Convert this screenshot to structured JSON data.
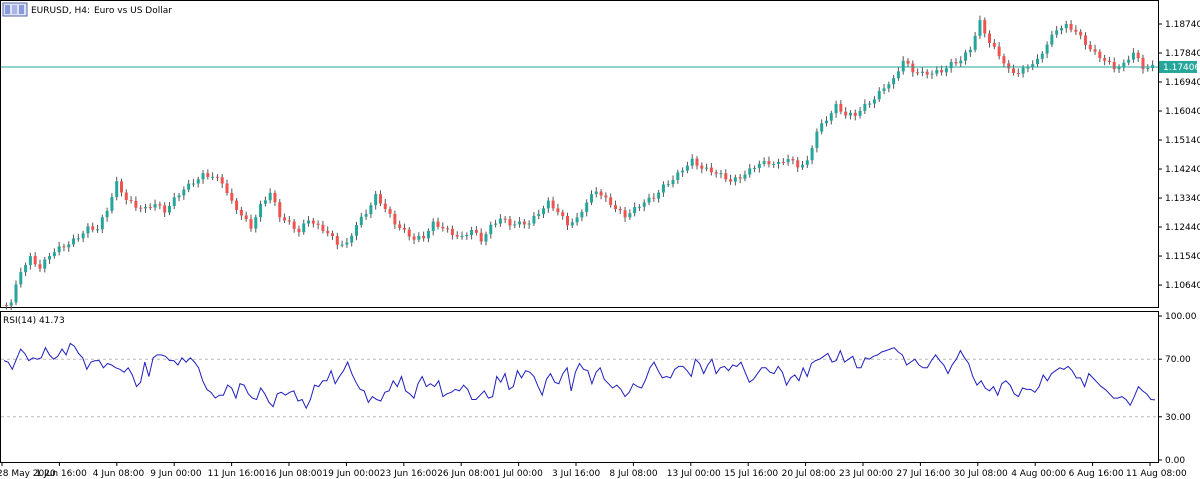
{
  "header": {
    "symbol": "EURUSD, H4:",
    "description": "Euro vs US Dollar",
    "icon": "chart-window-icon"
  },
  "indicator": {
    "label": "RSI(14) 41.73"
  },
  "colors": {
    "bull": "#26a69a",
    "bear": "#ef5350",
    "wick": "#555555",
    "rsi_line": "#1f1fbf",
    "last_price_line": "#26a69a",
    "frame": "#000000",
    "level_line": "#bbbbbb"
  },
  "chart_data": [
    {
      "type": "candlestick",
      "title": "EURUSD, H4: Euro vs US Dollar",
      "ylim": [
        1.0999,
        1.1936
      ],
      "y_ticks": [
        "1.18740",
        "1.17840",
        "1.16940",
        "1.16040",
        "1.15140",
        "1.14240",
        "1.13340",
        "1.12440",
        "1.11540",
        "1.10640"
      ],
      "x_ticks": [
        "28 May 2020",
        "1 Jun 16:00",
        "4 Jun 08:00",
        "9 Jun 00:00",
        "11 Jun 16:00",
        "16 Jun 08:00",
        "19 Jun 00:00",
        "23 Jun 16:00",
        "26 Jun 08:00",
        "1 Jul 00:00",
        "3 Jul 16:00",
        "8 Jul 08:00",
        "13 Jul 00:00",
        "15 Jul 16:00",
        "20 Jul 08:00",
        "23 Jul 00:00",
        "27 Jul 16:00",
        "30 Jul 08:00",
        "4 Aug 00:00",
        "6 Aug 16:00",
        "11 Aug 08:00"
      ],
      "last_price": "1.17406",
      "grid": false,
      "close_series": [
        1.101,
        1.111,
        1.1148,
        1.1115,
        1.116,
        1.1178,
        1.119,
        1.1215,
        1.124,
        1.1237,
        1.13,
        1.138,
        1.1328,
        1.131,
        1.13,
        1.1315,
        1.1295,
        1.133,
        1.136,
        1.1385,
        1.1405,
        1.14,
        1.1385,
        1.132,
        1.128,
        1.1245,
        1.131,
        1.135,
        1.128,
        1.1255,
        1.1228,
        1.127,
        1.1245,
        1.1225,
        1.1195,
        1.119,
        1.125,
        1.129,
        1.134,
        1.13,
        1.1258,
        1.123,
        1.1205,
        1.1215,
        1.1255,
        1.124,
        1.1225,
        1.121,
        1.1235,
        1.1205,
        1.1245,
        1.127,
        1.1255,
        1.1255,
        1.1255,
        1.129,
        1.132,
        1.129,
        1.1255,
        1.1268,
        1.132,
        1.136,
        1.133,
        1.13,
        1.128,
        1.13,
        1.132,
        1.1338,
        1.137,
        1.139,
        1.1425,
        1.145,
        1.1425,
        1.142,
        1.1405,
        1.1385,
        1.14,
        1.142,
        1.144,
        1.1445,
        1.144,
        1.1455,
        1.1435,
        1.1445,
        1.154,
        1.158,
        1.162,
        1.159,
        1.1595,
        1.162,
        1.164,
        1.168,
        1.17,
        1.176,
        1.173,
        1.172,
        1.172,
        1.173,
        1.175,
        1.176,
        1.18,
        1.188,
        1.1815,
        1.178,
        1.173,
        1.172,
        1.1745,
        1.176,
        1.181,
        1.186,
        1.1868,
        1.185,
        1.1815,
        1.1782,
        1.176,
        1.174,
        1.1748,
        1.1785,
        1.174,
        1.1741
      ]
    },
    {
      "type": "line",
      "title": "RSI(14) 41.73",
      "ylim": [
        0,
        100
      ],
      "y_ticks": [
        "100.00",
        "70.00",
        "30.00",
        "0.00"
      ],
      "levels": [
        70,
        30
      ],
      "current": 41.73,
      "series": [
        {
          "values": [
            69,
            68,
            63,
            70,
            77,
            74,
            69,
            71,
            70,
            71,
            78,
            73,
            70,
            72,
            77,
            73,
            81,
            79,
            74,
            71,
            63,
            68,
            69,
            69,
            64,
            67,
            66,
            64,
            63,
            61,
            64,
            59,
            51,
            54,
            68,
            58,
            71,
            73,
            73,
            72,
            69,
            69,
            66,
            71,
            68,
            71,
            68,
            64,
            55,
            49,
            47,
            43,
            45,
            45,
            52,
            50,
            43,
            53,
            52,
            46,
            43,
            42,
            50,
            46,
            40,
            37,
            46,
            47,
            45,
            47,
            48,
            41,
            42,
            36,
            42,
            52,
            51,
            55,
            55,
            62,
            53,
            58,
            62,
            68,
            60,
            54,
            49,
            48,
            40,
            44,
            42,
            41,
            47,
            48,
            55,
            51,
            58,
            48,
            46,
            43,
            53,
            58,
            51,
            53,
            51,
            55,
            44,
            46,
            47,
            49,
            48,
            52,
            49,
            42,
            42,
            45,
            48,
            43,
            44,
            58,
            54,
            60,
            49,
            51,
            62,
            57,
            62,
            61,
            58,
            51,
            45,
            56,
            60,
            54,
            53,
            60,
            64,
            48,
            61,
            67,
            63,
            62,
            53,
            61,
            64,
            56,
            53,
            50,
            52,
            49,
            44,
            47,
            53,
            51,
            50,
            56,
            64,
            68,
            62,
            57,
            58,
            57,
            63,
            65,
            65,
            62,
            58,
            70,
            67,
            60,
            66,
            70,
            60,
            64,
            65,
            62,
            66,
            65,
            68,
            61,
            54,
            56,
            60,
            64,
            64,
            61,
            60,
            65,
            61,
            52,
            57,
            59,
            55,
            64,
            58,
            67,
            69,
            70,
            72,
            74,
            68,
            69,
            76,
            68,
            70,
            72,
            64,
            64,
            71,
            70,
            72,
            73,
            75,
            76,
            77,
            78,
            75,
            73,
            66,
            68,
            70,
            66,
            64,
            64,
            69,
            73,
            69,
            66,
            60,
            66,
            70,
            76,
            71,
            67,
            58,
            52,
            55,
            50,
            48,
            51,
            45,
            53,
            55,
            52,
            46,
            44,
            50,
            49,
            49,
            47,
            51,
            59,
            55,
            60,
            62,
            64,
            63,
            65,
            62,
            57,
            57,
            51,
            60,
            57,
            54,
            51,
            49,
            46,
            43,
            43,
            44,
            42,
            38,
            44,
            51,
            48,
            46,
            42,
            41.73
          ]
        }
      ]
    }
  ]
}
